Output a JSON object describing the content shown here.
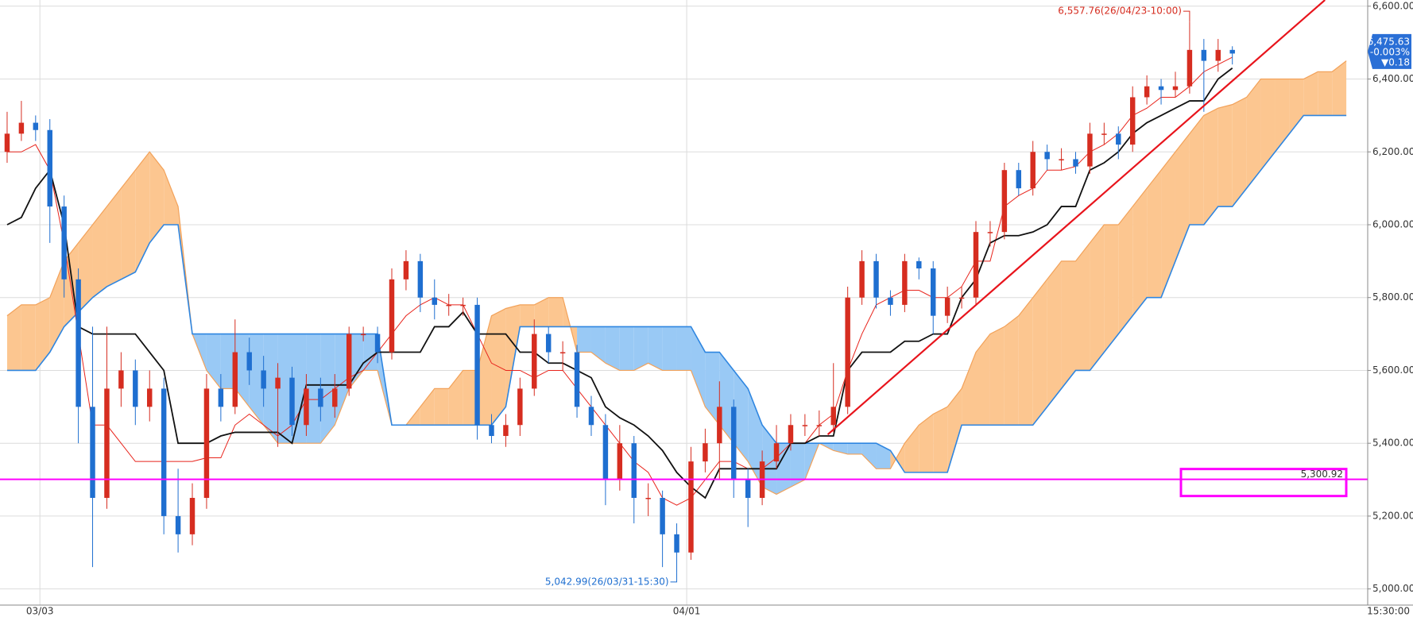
{
  "chart_data": {
    "type": "candlestick",
    "xlim": [
      -0.5,
      95.5
    ],
    "ylim": [
      4960,
      6617
    ],
    "xticks": [
      {
        "value": 2.3,
        "label": "03/03"
      },
      {
        "value": 47.7,
        "label": "04/01"
      }
    ],
    "x_end_label": "15:30:00",
    "yticks": [
      {
        "value": 5000,
        "label": "5,000.00"
      },
      {
        "value": 5200,
        "label": "5,200.00"
      },
      {
        "value": 5400,
        "label": "5,400.00"
      },
      {
        "value": 5600,
        "label": "5,600.00"
      },
      {
        "value": 5800,
        "label": "5,800.00"
      },
      {
        "value": 6000,
        "label": "6,000.00"
      },
      {
        "value": 6200,
        "label": "6,200.00"
      },
      {
        "value": 6400,
        "label": "6,400.00"
      },
      {
        "value": 6600,
        "label": "6,600.00"
      }
    ],
    "grid": true,
    "up_color": "#d62d20",
    "down_color": "#1f6fd0",
    "open": [
      6200,
      6250,
      6280,
      6260,
      6050,
      5850,
      5500,
      5250,
      5550,
      5600,
      5500,
      5550,
      5200,
      5150,
      5250,
      5550,
      5500,
      5650,
      5600,
      5550,
      5580,
      5450,
      5550,
      5500,
      5550,
      5700,
      5700,
      5650,
      5850,
      5900,
      5800,
      5780,
      5780,
      5780,
      5450,
      5420,
      5450,
      5550,
      5700,
      5650,
      5650,
      5500,
      5450,
      5300,
      5400,
      5250,
      5250,
      5150,
      5100,
      5350,
      5400,
      5500,
      5300,
      5250,
      5350,
      5400,
      5450,
      5450,
      5450,
      5500,
      5800,
      5900,
      5800,
      5780,
      5900,
      5880,
      5750,
      5800,
      5800,
      5980,
      5980,
      6150,
      6100,
      6200,
      6180,
      6180,
      6160,
      6250,
      6250,
      6220,
      6350,
      6380,
      6370,
      6380,
      6480,
      6450,
      6480
    ],
    "high": [
      6310,
      6340,
      6300,
      6290,
      6080,
      5880,
      5720,
      5720,
      5650,
      5630,
      5600,
      5580,
      5330,
      5290,
      5590,
      5590,
      5740,
      5690,
      5640,
      5620,
      5610,
      5590,
      5580,
      5590,
      5720,
      5720,
      5720,
      5880,
      5930,
      5920,
      5850,
      5810,
      5800,
      5800,
      5480,
      5480,
      5580,
      5740,
      5720,
      5680,
      5670,
      5530,
      5480,
      5450,
      5420,
      5290,
      5270,
      5180,
      5390,
      5440,
      5570,
      5520,
      5330,
      5380,
      5450,
      5480,
      5480,
      5490,
      5620,
      5830,
      5930,
      5920,
      5820,
      5920,
      5910,
      5900,
      5830,
      5830,
      6010,
      6010,
      6170,
      6170,
      6230,
      6220,
      6210,
      6200,
      6280,
      6280,
      6270,
      6380,
      6410,
      6400,
      6420,
      6557.76,
      6510,
      6510,
      6490
    ],
    "low": [
      6170,
      6230,
      6230,
      5950,
      5800,
      5400,
      5060,
      5220,
      5500,
      5450,
      5460,
      5150,
      5100,
      5120,
      5220,
      5460,
      5480,
      5560,
      5500,
      5390,
      5420,
      5420,
      5460,
      5470,
      5530,
      5680,
      5620,
      5630,
      5820,
      5760,
      5740,
      5750,
      5750,
      5410,
      5400,
      5390,
      5420,
      5530,
      5620,
      5600,
      5470,
      5420,
      5230,
      5270,
      5180,
      5200,
      5060,
      5042.99,
      5080,
      5320,
      5300,
      5250,
      5170,
      5230,
      5330,
      5380,
      5420,
      5420,
      5430,
      5480,
      5780,
      5770,
      5750,
      5760,
      5850,
      5700,
      5730,
      5770,
      5780,
      5940,
      5960,
      6080,
      6080,
      6150,
      6150,
      6140,
      6140,
      6220,
      6180,
      6200,
      6330,
      6330,
      6350,
      6360,
      6310,
      6420,
      6440
    ],
    "close": [
      6250,
      6280,
      6260,
      6050,
      5850,
      5500,
      5250,
      5550,
      5600,
      5500,
      5550,
      5200,
      5150,
      5250,
      5550,
      5500,
      5650,
      5600,
      5550,
      5580,
      5450,
      5550,
      5500,
      5550,
      5700,
      5700,
      5650,
      5850,
      5900,
      5800,
      5780,
      5780,
      5780,
      5450,
      5420,
      5450,
      5550,
      5700,
      5650,
      5650,
      5500,
      5450,
      5300,
      5400,
      5250,
      5250,
      5150,
      5100,
      5350,
      5400,
      5500,
      5300,
      5250,
      5350,
      5400,
      5450,
      5450,
      5450,
      5500,
      5800,
      5900,
      5800,
      5780,
      5900,
      5880,
      5750,
      5800,
      5800,
      5980,
      5980,
      6150,
      6100,
      6200,
      6180,
      6180,
      6160,
      6250,
      6250,
      6220,
      6350,
      6380,
      6370,
      6380,
      6480,
      6450,
      6480,
      6470
    ],
    "tenkan": {
      "color": "#e8241c",
      "values": [
        6200,
        6200,
        6220,
        6150,
        5950,
        5700,
        5450,
        5450,
        5400,
        5350,
        5350,
        5350,
        5350,
        5350,
        5360,
        5360,
        5450,
        5480,
        5450,
        5420,
        5450,
        5520,
        5520,
        5550,
        5580,
        5600,
        5650,
        5700,
        5750,
        5780,
        5800,
        5780,
        5780,
        5700,
        5620,
        5600,
        5600,
        5580,
        5600,
        5600,
        5550,
        5500,
        5450,
        5400,
        5350,
        5320,
        5250,
        5230,
        5250,
        5300,
        5350,
        5350,
        5330,
        5330,
        5360,
        5400,
        5400,
        5450,
        5480,
        5600,
        5700,
        5780,
        5800,
        5820,
        5820,
        5800,
        5800,
        5830,
        5900,
        5900,
        6050,
        6080,
        6100,
        6150,
        6150,
        6160,
        6200,
        6220,
        6250,
        6300,
        6320,
        6350,
        6350,
        6380,
        6420,
        6440,
        6460
      ]
    },
    "kijun": {
      "color": "#111111",
      "values": [
        6000,
        6020,
        6100,
        6150,
        6000,
        5720,
        5700,
        5700,
        5700,
        5700,
        5650,
        5600,
        5400,
        5400,
        5400,
        5420,
        5430,
        5430,
        5430,
        5430,
        5400,
        5560,
        5560,
        5560,
        5560,
        5620,
        5650,
        5650,
        5650,
        5650,
        5720,
        5720,
        5760,
        5700,
        5700,
        5700,
        5650,
        5650,
        5620,
        5620,
        5600,
        5580,
        5500,
        5470,
        5450,
        5420,
        5380,
        5320,
        5280,
        5250,
        5330,
        5330,
        5330,
        5330,
        5330,
        5400,
        5400,
        5420,
        5420,
        5600,
        5650,
        5650,
        5650,
        5680,
        5680,
        5700,
        5700,
        5800,
        5850,
        5950,
        5970,
        5970,
        5980,
        6000,
        6050,
        6050,
        6150,
        6170,
        6200,
        6250,
        6280,
        6300,
        6320,
        6340,
        6340,
        6400,
        6430
      ]
    },
    "span_a": {
      "color": "#f2a25a",
      "fill": "#fcc690",
      "values": [
        5750,
        5780,
        5780,
        5800,
        5900,
        5950,
        6000,
        6050,
        6100,
        6150,
        6200,
        6150,
        6050,
        5700,
        5600,
        5550,
        5550,
        5500,
        5450,
        5400,
        5400,
        5400,
        5400,
        5450,
        5550,
        5600,
        5600,
        5450,
        5450,
        5500,
        5550,
        5550,
        5600,
        5600,
        5750,
        5770,
        5780,
        5780,
        5800,
        5800,
        5650,
        5650,
        5620,
        5600,
        5600,
        5620,
        5600,
        5600,
        5600,
        5500,
        5450,
        5400,
        5350,
        5280,
        5260,
        5280,
        5300,
        5400,
        5380,
        5370,
        5370,
        5330,
        5330,
        5400,
        5450,
        5480,
        5500,
        5550,
        5650,
        5700,
        5720,
        5750,
        5800,
        5850,
        5900,
        5900,
        5950,
        6000,
        6000,
        6050,
        6100,
        6150,
        6200,
        6250,
        6300,
        6320,
        6330,
        6350,
        6400,
        6400,
        6400,
        6400,
        6420,
        6420,
        6450
      ]
    },
    "span_b": {
      "color": "#2f86e0",
      "fill": "#99c9f5",
      "values": [
        5600,
        5600,
        5600,
        5650,
        5720,
        5760,
        5800,
        5830,
        5850,
        5870,
        5950,
        6000,
        6000,
        5700,
        5700,
        5700,
        5700,
        5700,
        5700,
        5700,
        5700,
        5700,
        5700,
        5700,
        5700,
        5700,
        5700,
        5450,
        5450,
        5450,
        5450,
        5450,
        5450,
        5450,
        5450,
        5500,
        5720,
        5720,
        5720,
        5720,
        5720,
        5720,
        5720,
        5720,
        5720,
        5720,
        5720,
        5720,
        5720,
        5650,
        5650,
        5600,
        5550,
        5450,
        5400,
        5400,
        5400,
        5400,
        5400,
        5400,
        5400,
        5400,
        5380,
        5320,
        5320,
        5320,
        5320,
        5450,
        5450,
        5450,
        5450,
        5450,
        5450,
        5500,
        5550,
        5600,
        5600,
        5650,
        5700,
        5750,
        5800,
        5800,
        5900,
        6000,
        6000,
        6050,
        6050,
        6100,
        6150,
        6200,
        6250,
        6300,
        6300,
        6300,
        6300
      ]
    },
    "trendline": {
      "color": "#e8141c",
      "x": [
        57.6,
        92.5
      ],
      "y": [
        5424,
        6617
      ]
    },
    "hline": {
      "value": 5300.92,
      "label": "5,300.92",
      "color": "#ff00ff"
    },
    "annotations": [
      {
        "text": "6,557.76(26/04/23-10:00)",
        "x": 83,
        "y": 6557.76,
        "color": "#d62d20"
      },
      {
        "text": "5,042.99(26/03/31-15:30)",
        "x": 47,
        "y": 5042.99,
        "color": "#1f6fd0"
      }
    ],
    "last_price": {
      "value": 6475.63,
      "label": "6,475.63",
      "change_pct": "-0.003%",
      "change": "▼0.18",
      "color": "#2a6fd6"
    }
  }
}
